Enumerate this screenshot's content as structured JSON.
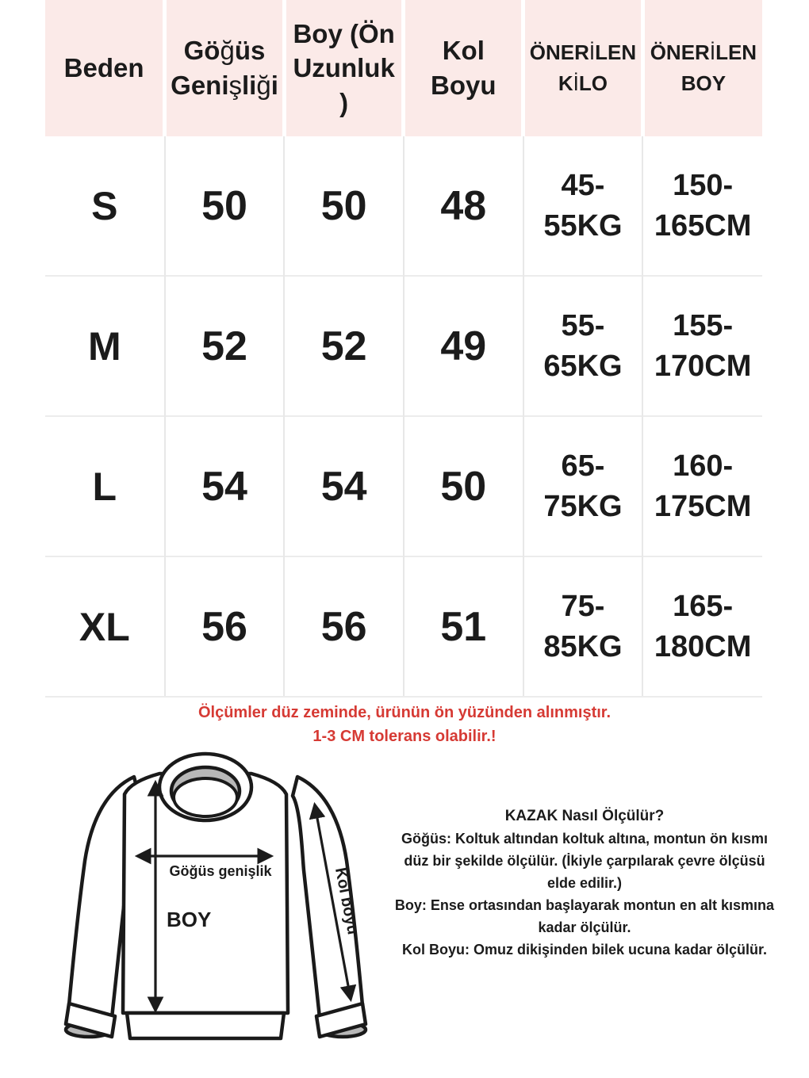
{
  "table": {
    "headers": [
      "Beden",
      "Göğüs Genişliği",
      "Boy (Ön Uzunluk\n)",
      "Kol Boyu",
      "ÖNERİLEN KİLO",
      "ÖNERİLEN BOY"
    ],
    "rows": [
      [
        "S",
        "50",
        "50",
        "48",
        "45-\n55KG",
        "150-\n165CM"
      ],
      [
        "M",
        "52",
        "52",
        "49",
        "55-\n65KG",
        "155-\n170CM"
      ],
      [
        "L",
        "54",
        "54",
        "50",
        "65-\n75KG",
        "160-\n175CM"
      ],
      [
        "XL",
        "56",
        "56",
        "51",
        "75-\n85KG",
        "165-\n180CM"
      ]
    ]
  },
  "note": {
    "line1": "Ölçümler düz zeminde, ürünün ön yüzünden alınmıştır.",
    "line2": "1-3 CM tolerans olabilir.!"
  },
  "diagram": {
    "chest_label": "Göğüs genişlik",
    "length_label": "BOY",
    "sleeve_label": "Kol boyu"
  },
  "instructions": {
    "title": "KAZAK Nasıl Ölçülür?",
    "items": [
      "Göğüs: Koltuk altından koltuk altına, montun ön kısmı düz bir şekilde ölçülür. (İkiyle çarpılarak çevre ölçüsü elde edilir.)",
      "Boy: Ense ortasından başlayarak montun en alt kısmına kadar ölçülür.",
      "Kol Boyu: Omuz dikişinden bilek ucuna kadar ölçülür."
    ]
  },
  "colors": {
    "header_bg": "#fbeae8",
    "note_red": "#d63a34",
    "grid_line": "#ececec",
    "garment_gray": "#b8b8b8"
  }
}
